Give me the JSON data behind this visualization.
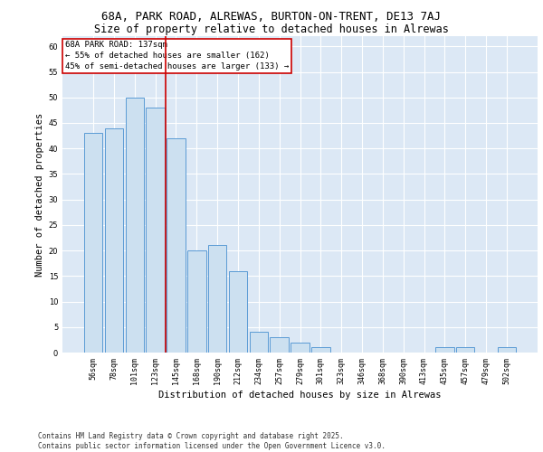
{
  "title_line1": "68A, PARK ROAD, ALREWAS, BURTON-ON-TRENT, DE13 7AJ",
  "title_line2": "Size of property relative to detached houses in Alrewas",
  "xlabel": "Distribution of detached houses by size in Alrewas",
  "ylabel": "Number of detached properties",
  "categories": [
    "56sqm",
    "78sqm",
    "101sqm",
    "123sqm",
    "145sqm",
    "168sqm",
    "190sqm",
    "212sqm",
    "234sqm",
    "257sqm",
    "279sqm",
    "301sqm",
    "323sqm",
    "346sqm",
    "368sqm",
    "390sqm",
    "413sqm",
    "435sqm",
    "457sqm",
    "479sqm",
    "502sqm"
  ],
  "values": [
    43,
    44,
    50,
    48,
    42,
    20,
    21,
    16,
    4,
    3,
    2,
    1,
    0,
    0,
    0,
    0,
    0,
    1,
    1,
    0,
    1
  ],
  "bar_color": "#cce0f0",
  "bar_edge_color": "#5b9bd5",
  "vline_x": 3.5,
  "vline_color": "#cc0000",
  "annotation_text": "68A PARK ROAD: 137sqm\n← 55% of detached houses are smaller (162)\n45% of semi-detached houses are larger (133) →",
  "annotation_box_color": "#ffffff",
  "annotation_box_edge_color": "#cc0000",
  "ylim": [
    0,
    62
  ],
  "yticks": [
    0,
    5,
    10,
    15,
    20,
    25,
    30,
    35,
    40,
    45,
    50,
    55,
    60
  ],
  "background_color": "#dce8f5",
  "grid_color": "#ffffff",
  "footer_text": "Contains HM Land Registry data © Crown copyright and database right 2025.\nContains public sector information licensed under the Open Government Licence v3.0.",
  "title_fontsize": 9,
  "subtitle_fontsize": 8.5,
  "axis_label_fontsize": 7.5,
  "tick_fontsize": 6,
  "annotation_fontsize": 6.5,
  "footer_fontsize": 5.5
}
